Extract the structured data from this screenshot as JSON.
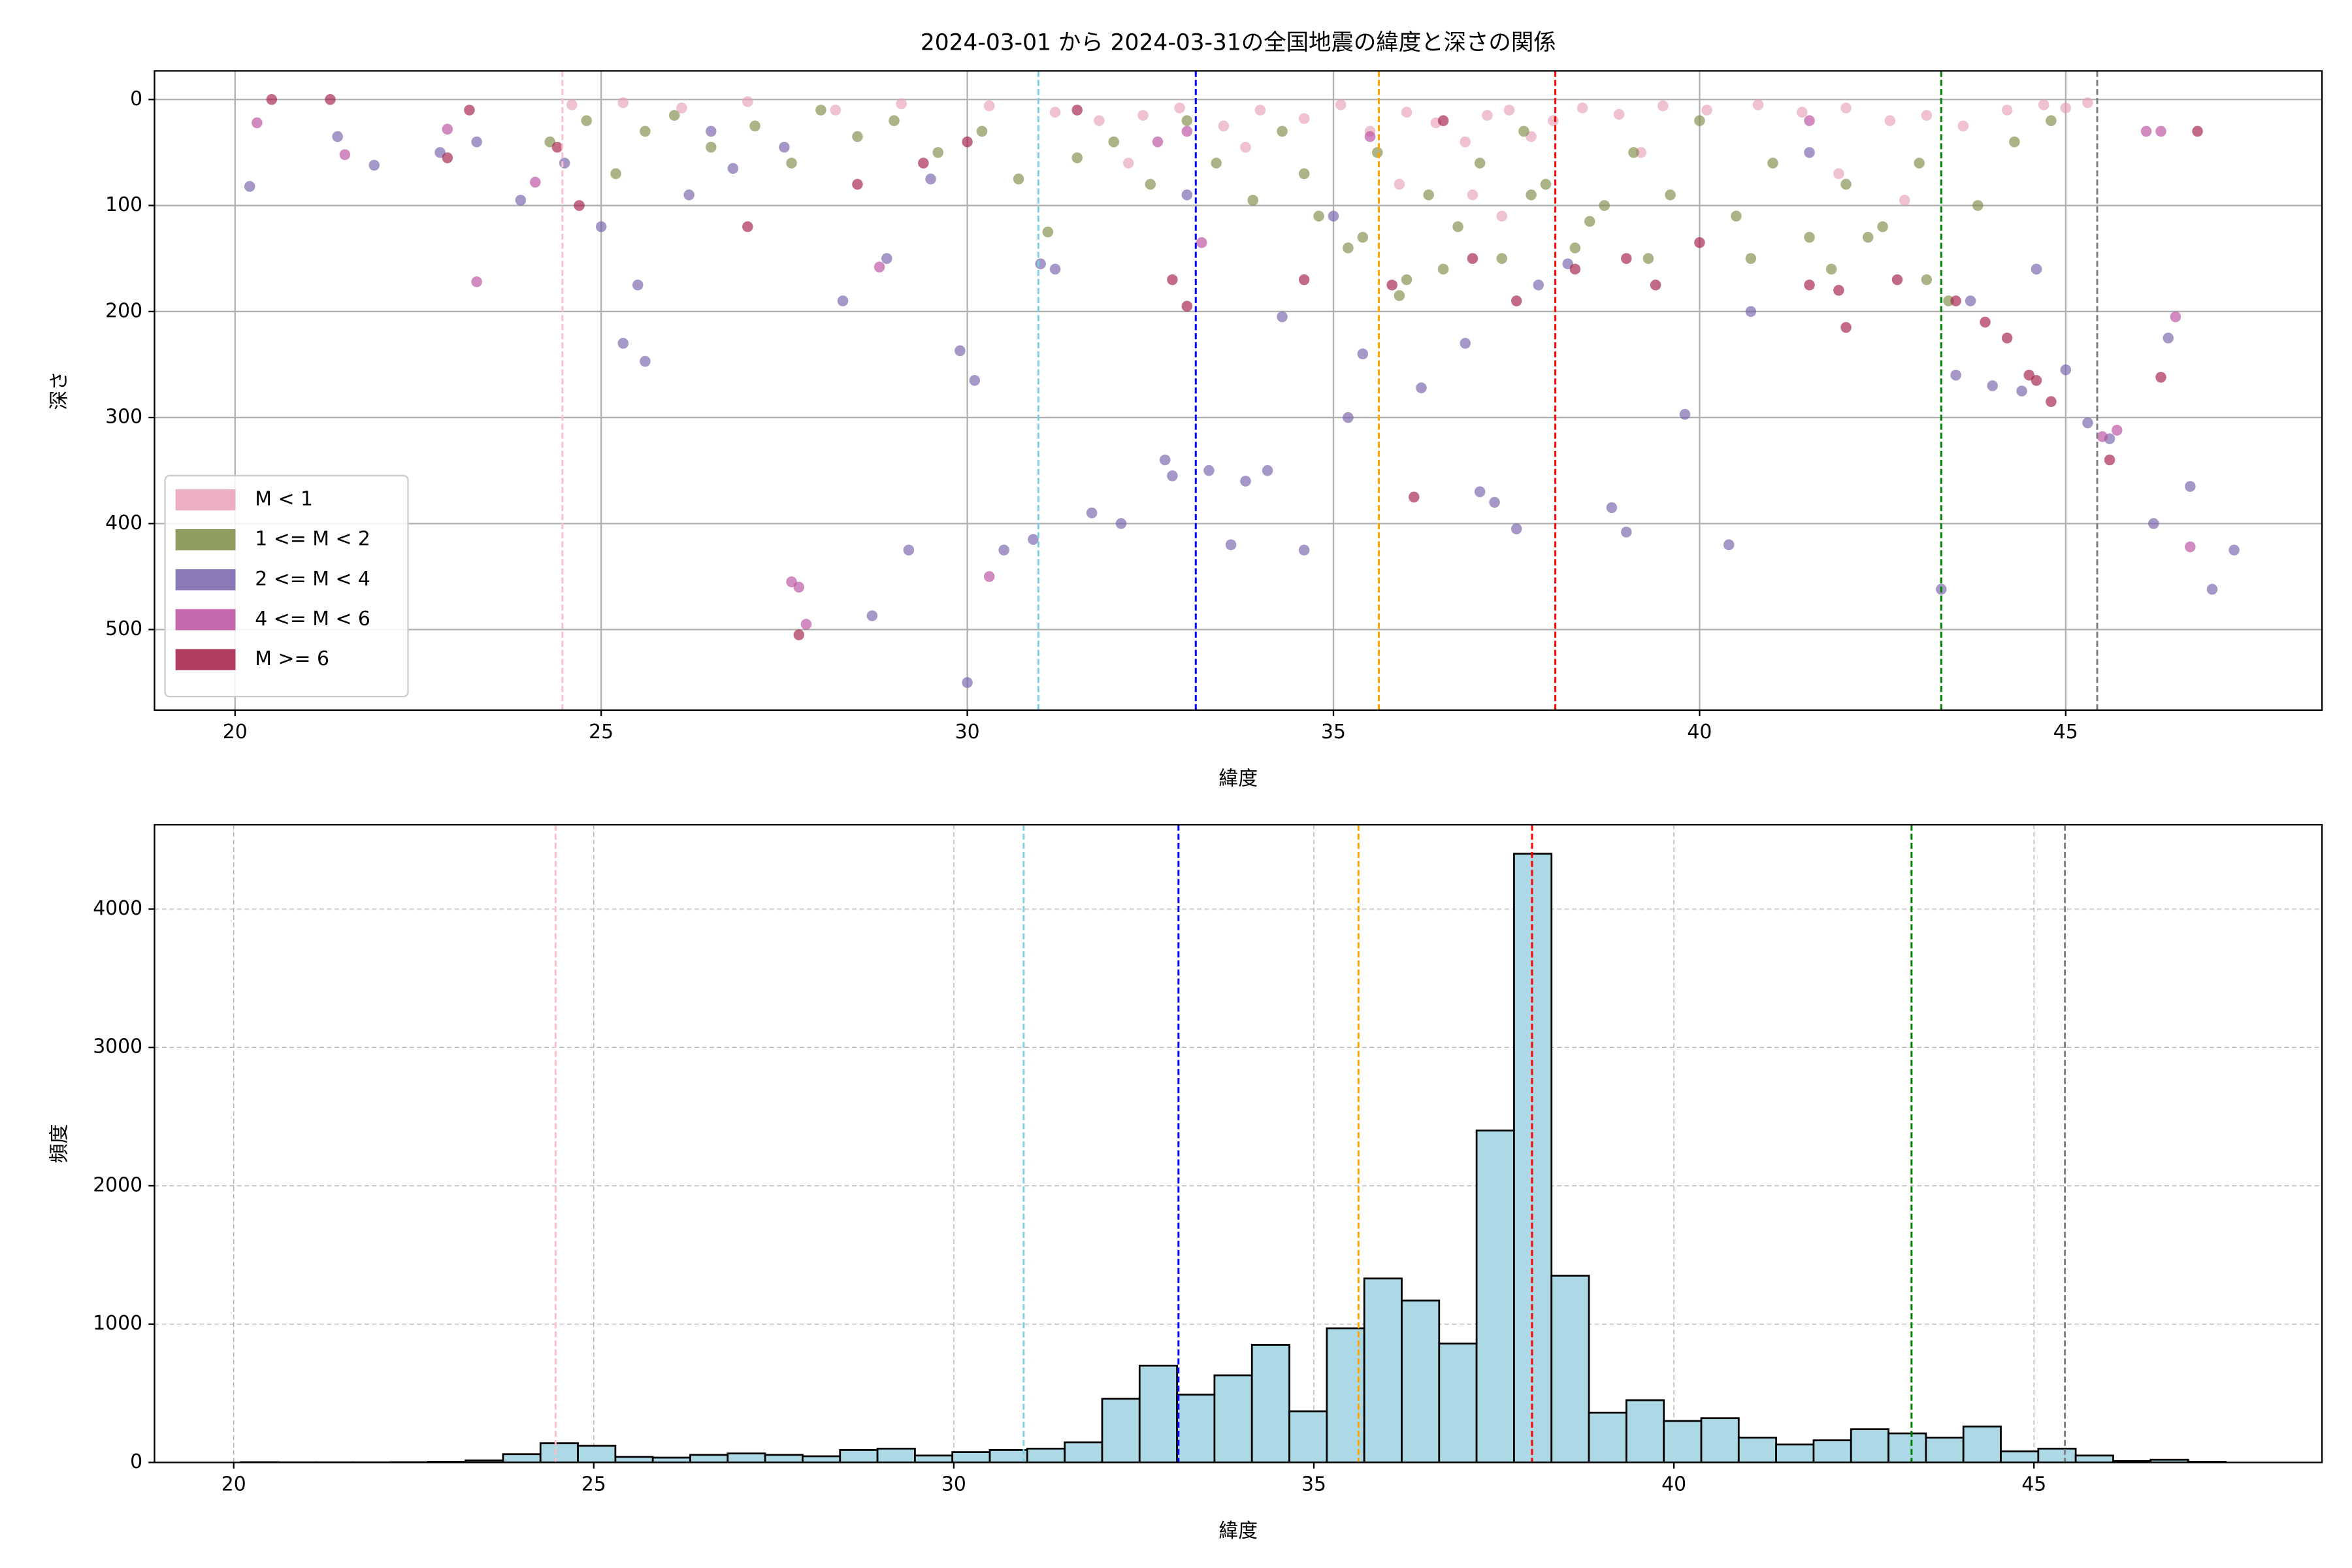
{
  "chart_data": [
    {
      "type": "scatter",
      "title": "2024-03-01 から 2024-03-31の全国地震の緯度と深さの関係",
      "xlabel": "緯度",
      "ylabel": "深さ",
      "xlim": [
        18.9,
        48.5
      ],
      "ylim": [
        -27,
        576
      ],
      "invert_y": true,
      "xticks": [
        20,
        25,
        30,
        35,
        40,
        45
      ],
      "yticks": [
        0,
        100,
        200,
        300,
        400,
        500
      ],
      "grid": true,
      "grid_style": "solid",
      "legend": "lower left",
      "alpha": 0.65,
      "vlines": [
        {
          "x": 24.47,
          "color": "#ffc0cb"
        },
        {
          "x": 30.97,
          "color": "#7fd0e0"
        },
        {
          "x": 33.12,
          "color": "#0000ff"
        },
        {
          "x": 35.62,
          "color": "#ffa500"
        },
        {
          "x": 38.03,
          "color": "#ff0000"
        },
        {
          "x": 43.3,
          "color": "#008000"
        },
        {
          "x": 45.43,
          "color": "#808080"
        }
      ],
      "series": [
        {
          "name": "M < 1",
          "color": "#e8a0b8",
          "x": [
            24.6,
            25.3,
            26.1,
            27.0,
            28.2,
            29.1,
            30.3,
            31.2,
            31.8,
            32.4,
            32.9,
            33.5,
            34.0,
            34.6,
            35.1,
            35.5,
            36.0,
            36.4,
            36.8,
            37.1,
            37.4,
            37.7,
            38.0,
            38.4,
            38.9,
            39.5,
            40.1,
            40.8,
            41.4,
            42.0,
            42.6,
            43.1,
            43.6,
            44.2,
            44.7,
            45.0,
            45.3,
            36.9,
            37.3,
            41.9,
            42.8,
            32.2,
            33.8,
            35.9,
            39.2
          ],
          "values": [
            5,
            3,
            8,
            2,
            10,
            4,
            6,
            12,
            20,
            15,
            8,
            25,
            10,
            18,
            5,
            30,
            12,
            22,
            40,
            15,
            10,
            35,
            20,
            8,
            14,
            6,
            10,
            5,
            12,
            8,
            20,
            15,
            25,
            10,
            5,
            8,
            3,
            90,
            110,
            70,
            95,
            60,
            45,
            80,
            50
          ]
        },
        {
          "name": "1 <= M < 2",
          "color": "#7d8c45",
          "x": [
            24.3,
            24.8,
            25.2,
            25.6,
            26.0,
            26.5,
            27.1,
            27.6,
            28.0,
            28.5,
            29.0,
            29.6,
            30.2,
            30.7,
            31.1,
            31.5,
            32.0,
            32.5,
            33.0,
            33.4,
            33.9,
            34.3,
            34.8,
            35.2,
            35.6,
            36.0,
            36.3,
            36.7,
            37.0,
            37.3,
            37.6,
            37.9,
            38.3,
            38.7,
            39.1,
            39.6,
            40.0,
            40.5,
            41.0,
            41.5,
            42.0,
            42.5,
            43.0,
            43.4,
            43.8,
            44.3,
            44.8,
            35.4,
            35.9,
            36.5,
            38.5,
            39.3,
            41.8,
            42.3,
            43.1,
            34.6,
            37.7,
            40.7
          ],
          "values": [
            40,
            20,
            70,
            30,
            15,
            45,
            25,
            60,
            10,
            35,
            20,
            50,
            30,
            75,
            125,
            55,
            40,
            80,
            20,
            60,
            95,
            30,
            110,
            140,
            50,
            170,
            90,
            120,
            60,
            150,
            30,
            80,
            140,
            100,
            50,
            90,
            20,
            110,
            60,
            130,
            80,
            120,
            60,
            190,
            100,
            40,
            20,
            130,
            185,
            160,
            115,
            150,
            160,
            130,
            170,
            70,
            90,
            150
          ]
        },
        {
          "name": "2 <= M < 4",
          "color": "#7560aa",
          "x": [
            20.2,
            21.4,
            21.9,
            22.8,
            23.3,
            23.9,
            24.5,
            25.0,
            25.3,
            25.5,
            25.6,
            26.2,
            26.8,
            27.5,
            28.3,
            28.7,
            28.9,
            29.2,
            29.9,
            30.0,
            30.1,
            30.5,
            30.9,
            31.0,
            31.2,
            31.7,
            32.1,
            32.7,
            32.8,
            33.0,
            33.3,
            33.6,
            33.8,
            34.1,
            34.3,
            34.6,
            35.2,
            35.4,
            36.2,
            36.8,
            37.0,
            37.2,
            37.5,
            37.8,
            38.2,
            38.8,
            39.0,
            39.8,
            40.4,
            40.7,
            41.5,
            43.3,
            43.5,
            43.7,
            44.0,
            44.4,
            44.6,
            45.0,
            45.3,
            45.6,
            46.2,
            46.4,
            46.7,
            47.0,
            47.3,
            26.5,
            29.5,
            35.0
          ],
          "values": [
            82,
            35,
            62,
            50,
            40,
            95,
            60,
            120,
            230,
            175,
            247,
            90,
            65,
            45,
            190,
            487,
            150,
            425,
            237,
            550,
            265,
            425,
            415,
            155,
            160,
            390,
            400,
            340,
            355,
            90,
            350,
            420,
            360,
            350,
            205,
            425,
            300,
            240,
            272,
            230,
            370,
            380,
            405,
            175,
            155,
            385,
            408,
            297,
            420,
            200,
            50,
            462,
            260,
            190,
            270,
            275,
            160,
            255,
            305,
            320,
            400,
            225,
            365,
            462,
            425,
            30,
            75,
            110
          ]
        },
        {
          "name": "4 <= M < 6",
          "color": "#b84d9e",
          "x": [
            20.3,
            21.5,
            22.9,
            23.3,
            24.1,
            27.6,
            27.7,
            27.8,
            28.8,
            30.3,
            32.6,
            33.0,
            35.5,
            41.5,
            45.5,
            45.7,
            46.1,
            46.3,
            46.5,
            46.7,
            33.2
          ],
          "values": [
            22,
            52,
            28,
            172,
            78,
            455,
            460,
            495,
            158,
            450,
            40,
            30,
            35,
            20,
            318,
            312,
            30,
            30,
            205,
            422,
            135
          ]
        },
        {
          "name": "M >= 6",
          "color": "#a31c45",
          "x": [
            20.5,
            21.3,
            22.9,
            23.2,
            24.4,
            24.7,
            27.0,
            27.7,
            29.4,
            30.0,
            31.5,
            32.8,
            33.0,
            34.6,
            35.8,
            36.1,
            36.9,
            37.5,
            38.3,
            39.0,
            39.4,
            40.0,
            41.5,
            41.9,
            42.0,
            42.7,
            43.5,
            43.9,
            44.2,
            44.5,
            44.6,
            44.8,
            45.6,
            46.3,
            46.8,
            28.5,
            36.5
          ],
          "values": [
            0,
            0,
            55,
            10,
            45,
            100,
            120,
            505,
            60,
            40,
            10,
            170,
            195,
            170,
            175,
            375,
            150,
            190,
            160,
            150,
            175,
            135,
            175,
            180,
            215,
            170,
            190,
            210,
            225,
            260,
            265,
            285,
            340,
            262,
            30,
            80,
            20
          ]
        }
      ]
    },
    {
      "type": "histogram",
      "xlabel": "緯度",
      "ylabel": "頻度",
      "xlim": [
        18.9,
        49.0
      ],
      "ylim": [
        0,
        4610
      ],
      "xticks": [
        20,
        25,
        30,
        35,
        40,
        45
      ],
      "yticks": [
        0,
        1000,
        2000,
        3000,
        4000
      ],
      "grid": true,
      "grid_style": "dashed",
      "color": "#add8e6",
      "edgecolor": "#000000",
      "bins": [
        20.1,
        20.62,
        21.14,
        21.66,
        22.18,
        22.7,
        23.22,
        23.74,
        24.26,
        24.78,
        25.3,
        25.82,
        26.34,
        26.86,
        27.38,
        27.9,
        28.42,
        28.94,
        29.46,
        29.98,
        30.5,
        31.02,
        31.54,
        32.06,
        32.58,
        33.1,
        33.62,
        34.14,
        34.66,
        35.18,
        35.7,
        36.22,
        36.74,
        37.26,
        37.78,
        38.3,
        38.82,
        39.34,
        39.86,
        40.38,
        40.9,
        41.42,
        41.94,
        42.46,
        42.98,
        43.5,
        44.02,
        44.54,
        45.06,
        45.58,
        46.1,
        46.62,
        47.14,
        47.66
      ],
      "counts": [
        2,
        1,
        1,
        1,
        2,
        5,
        15,
        60,
        140,
        120,
        40,
        35,
        55,
        65,
        55,
        45,
        90,
        100,
        50,
        75,
        90,
        100,
        145,
        460,
        700,
        490,
        630,
        850,
        370,
        970,
        1330,
        1170,
        860,
        2400,
        4400,
        1350,
        360,
        450,
        300,
        320,
        180,
        130,
        160,
        240,
        210,
        180,
        260,
        80,
        100,
        50,
        10,
        20,
        5
      ],
      "vlines": [
        {
          "x": 24.47,
          "color": "#ffc0cb"
        },
        {
          "x": 30.97,
          "color": "#7fd0e0"
        },
        {
          "x": 33.12,
          "color": "#0000ff"
        },
        {
          "x": 35.62,
          "color": "#ffa500"
        },
        {
          "x": 38.03,
          "color": "#ff0000"
        },
        {
          "x": 43.3,
          "color": "#008000"
        },
        {
          "x": 45.43,
          "color": "#808080"
        }
      ]
    }
  ]
}
